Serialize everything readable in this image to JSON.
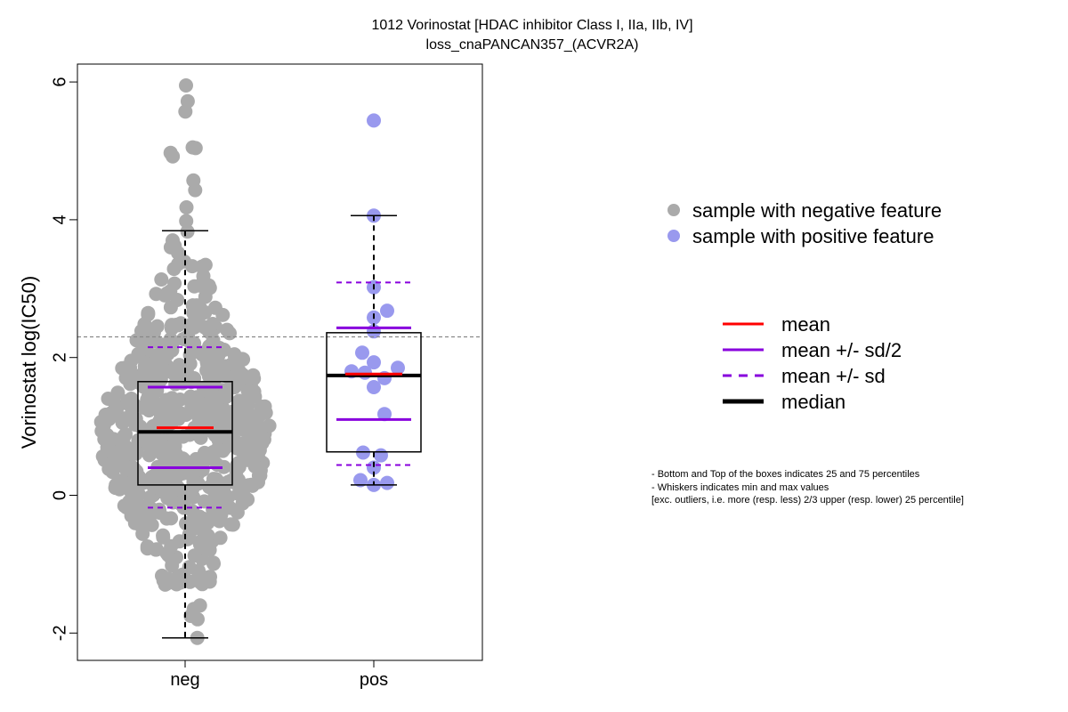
{
  "chart_data": {
    "type": "box",
    "title": "1012 Vorinostat [HDAC inhibitor Class I, IIa, IIb, IV]",
    "subtitle": "loss_cnaPANCAN357_(ACVR2A)",
    "ylabel": "Vorinostat log(IC50)",
    "xlabel": "",
    "ylim": [
      -2.4,
      6.3
    ],
    "yticks": [
      -2,
      0,
      2,
      4,
      6
    ],
    "categories": [
      "neg",
      "pos"
    ],
    "reference_line": 2.3,
    "groups": [
      {
        "name": "neg",
        "color": "#aaaaaa",
        "q1": 0.15,
        "median": 0.92,
        "q3": 1.65,
        "whisker_low": -2.07,
        "whisker_high": 3.84,
        "mean": 0.98,
        "sd_half_low": 0.4,
        "sd_half_high": 1.57,
        "sd_low": -0.18,
        "sd_high": 2.15,
        "highlight_points": [
          5.95,
          5.72,
          5.57,
          5.05,
          5.04,
          4.97,
          4.92,
          4.57,
          4.43,
          4.18,
          3.98,
          3.83,
          3.7,
          3.62,
          3.6,
          3.52,
          -1.6,
          -1.65,
          -1.75,
          -1.8,
          -2.07
        ]
      },
      {
        "name": "pos",
        "color": "#9999ee",
        "q1": 0.63,
        "median": 1.74,
        "q3": 2.36,
        "whisker_low": 0.15,
        "whisker_high": 4.06,
        "mean": 1.76,
        "sd_half_low": 1.1,
        "sd_half_high": 2.43,
        "sd_low": 0.44,
        "sd_high": 3.09,
        "points": [
          5.44,
          4.06,
          3.02,
          2.68,
          2.58,
          2.38,
          2.07,
          1.93,
          1.85,
          1.8,
          1.78,
          1.7,
          1.57,
          1.18,
          0.62,
          0.58,
          0.4,
          0.22,
          0.18,
          0.15
        ]
      }
    ],
    "legend_points": [
      {
        "label": "sample with negative feature",
        "color": "#aaaaaa"
      },
      {
        "label": "sample with positive feature",
        "color": "#9999ee"
      }
    ],
    "legend_lines": [
      {
        "label": "mean",
        "color": "#ff0000",
        "style": "solid"
      },
      {
        "label": "mean +/- sd/2",
        "color": "#8800dd",
        "style": "solid"
      },
      {
        "label": "mean +/- sd",
        "color": "#8800dd",
        "style": "dashed"
      },
      {
        "label": "median",
        "color": "#000000",
        "style": "thick"
      }
    ],
    "notes": [
      "- Bottom and Top of the boxes indicates 25 and 75 percentiles",
      "- Whiskers indicates min and max values",
      "[exc. outliers, i.e. more (resp. less) 2/3 upper (resp. lower) 25 percentile]"
    ],
    "colors": {
      "mean": "#ff0000",
      "sd": "#8800dd",
      "median": "#000000",
      "refline": "#888888"
    }
  }
}
